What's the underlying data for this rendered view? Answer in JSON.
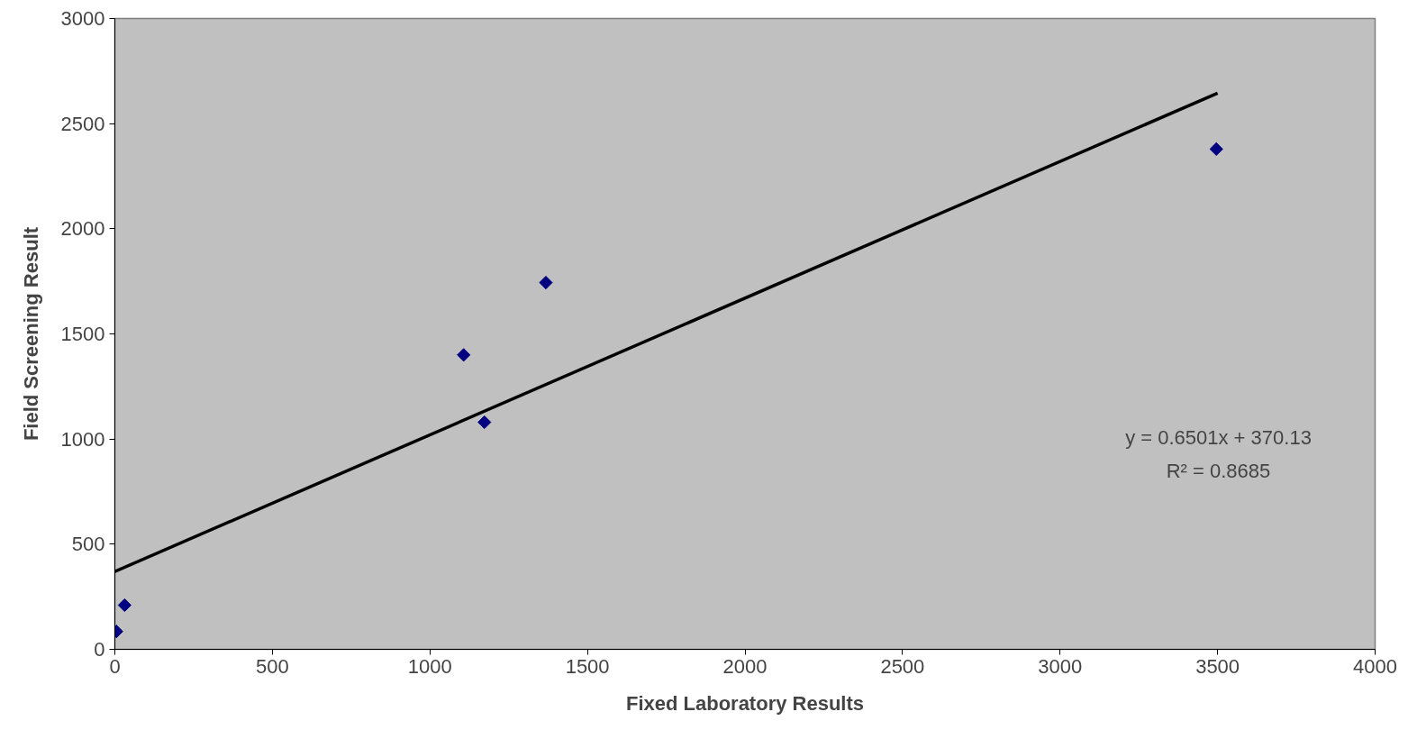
{
  "chart_data": {
    "type": "scatter",
    "xlabel": "Fixed Laboratory Results",
    "ylabel": "Field Screening Result",
    "series": [
      {
        "color": "#000080",
        "marker": "diamond",
        "x": [
          5,
          31,
          1107,
          1173,
          1368,
          3496
        ],
        "values": [
          85,
          210,
          1400,
          1080,
          1744,
          2379
        ]
      },
      {
        "type": "line",
        "color": "#000000",
        "marker": "none",
        "line_style": "solid",
        "x": [
          0,
          3500
        ],
        "values": [
          370,
          2645
        ]
      }
    ],
    "annotations": [
      "y = 0.6501x + 370.13",
      "R² = 0.8685"
    ],
    "xlim": [
      0,
      4000
    ],
    "xticks": [
      0,
      500,
      1000,
      1500,
      2000,
      2500,
      3000,
      3500,
      4000
    ],
    "ylim": [
      0,
      3000
    ],
    "yticks": [
      0,
      500,
      1000,
      1500,
      2000,
      2500,
      3000
    ],
    "grid": false
  }
}
